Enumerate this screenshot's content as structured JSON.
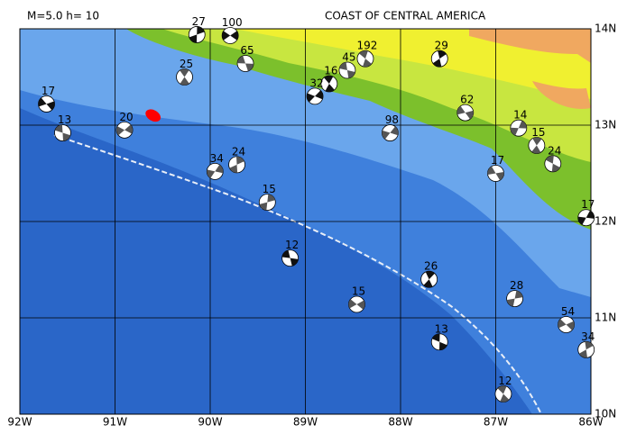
{
  "map": {
    "title_left": "M=5.0 h= 10",
    "title_right": "COAST OF CENTRAL AMERICA",
    "lonlim": [
      -92,
      -86
    ],
    "latlim": [
      10,
      14
    ],
    "lonticks": [
      {
        "value": -92,
        "label": "92W"
      },
      {
        "value": -91,
        "label": "91W"
      },
      {
        "value": -90,
        "label": "90W"
      },
      {
        "value": -89,
        "label": "89W"
      },
      {
        "value": -88,
        "label": "88W"
      },
      {
        "value": -87,
        "label": "87W"
      },
      {
        "value": -86,
        "label": "86W"
      }
    ],
    "latticks": [
      {
        "value": 10,
        "label": "10N"
      },
      {
        "value": 11,
        "label": "11N"
      },
      {
        "value": 12,
        "label": "12N"
      },
      {
        "value": 13,
        "label": "13N"
      },
      {
        "value": 14,
        "label": "14N"
      }
    ],
    "grid": true,
    "mainshock": {
      "lon": -90.6,
      "lat": 13.1,
      "color": "#ff0000"
    },
    "events": [
      {
        "lon": -89.79,
        "lat": 13.93,
        "depth": 100
      },
      {
        "lon": -89.63,
        "lat": 13.64,
        "depth": 65
      },
      {
        "lon": -88.37,
        "lat": 13.69,
        "depth": 192
      },
      {
        "lon": -87.59,
        "lat": 13.69,
        "depth": 29
      },
      {
        "lon": -86.76,
        "lat": 12.97,
        "depth": 14
      },
      {
        "lon": -88.46,
        "lat": 11.14,
        "depth": 15
      },
      {
        "lon": -89.16,
        "lat": 11.62,
        "depth": 12
      },
      {
        "lon": -86.92,
        "lat": 10.21,
        "depth": 12
      },
      {
        "lon": -86.05,
        "lat": 10.67,
        "depth": 34
      },
      {
        "lon": -86.05,
        "lat": 12.04,
        "depth": 17
      },
      {
        "lon": -86.26,
        "lat": 10.93,
        "depth": 54
      },
      {
        "lon": -88.56,
        "lat": 13.57,
        "depth": 45
      },
      {
        "lon": -88.75,
        "lat": 13.43,
        "depth": 16
      },
      {
        "lon": -89.72,
        "lat": 12.59,
        "depth": 24
      },
      {
        "lon": -89.95,
        "lat": 12.52,
        "depth": 34
      },
      {
        "lon": -91.72,
        "lat": 13.22,
        "depth": 17
      },
      {
        "lon": -91.55,
        "lat": 12.92,
        "depth": 13
      },
      {
        "lon": -90.27,
        "lat": 13.5,
        "depth": 25
      },
      {
        "lon": -90.14,
        "lat": 13.94,
        "depth": 27
      },
      {
        "lon": -88.11,
        "lat": 12.92,
        "depth": 98
      },
      {
        "lon": -87.32,
        "lat": 13.13,
        "depth": 62
      },
      {
        "lon": -87.59,
        "lat": 10.75,
        "depth": 13
      },
      {
        "lon": -86.57,
        "lat": 12.79,
        "depth": 15
      },
      {
        "lon": -89.4,
        "lat": 12.2,
        "depth": 15
      },
      {
        "lon": -88.9,
        "lat": 13.3,
        "depth": 32
      },
      {
        "lon": -87.0,
        "lat": 12.5,
        "depth": 17
      },
      {
        "lon": -86.4,
        "lat": 12.6,
        "depth": 24
      },
      {
        "lon": -87.7,
        "lat": 11.4,
        "depth": 26
      },
      {
        "lon": -86.8,
        "lat": 11.2,
        "depth": 28
      },
      {
        "lon": -90.9,
        "lat": 12.95,
        "depth": 20
      }
    ]
  }
}
